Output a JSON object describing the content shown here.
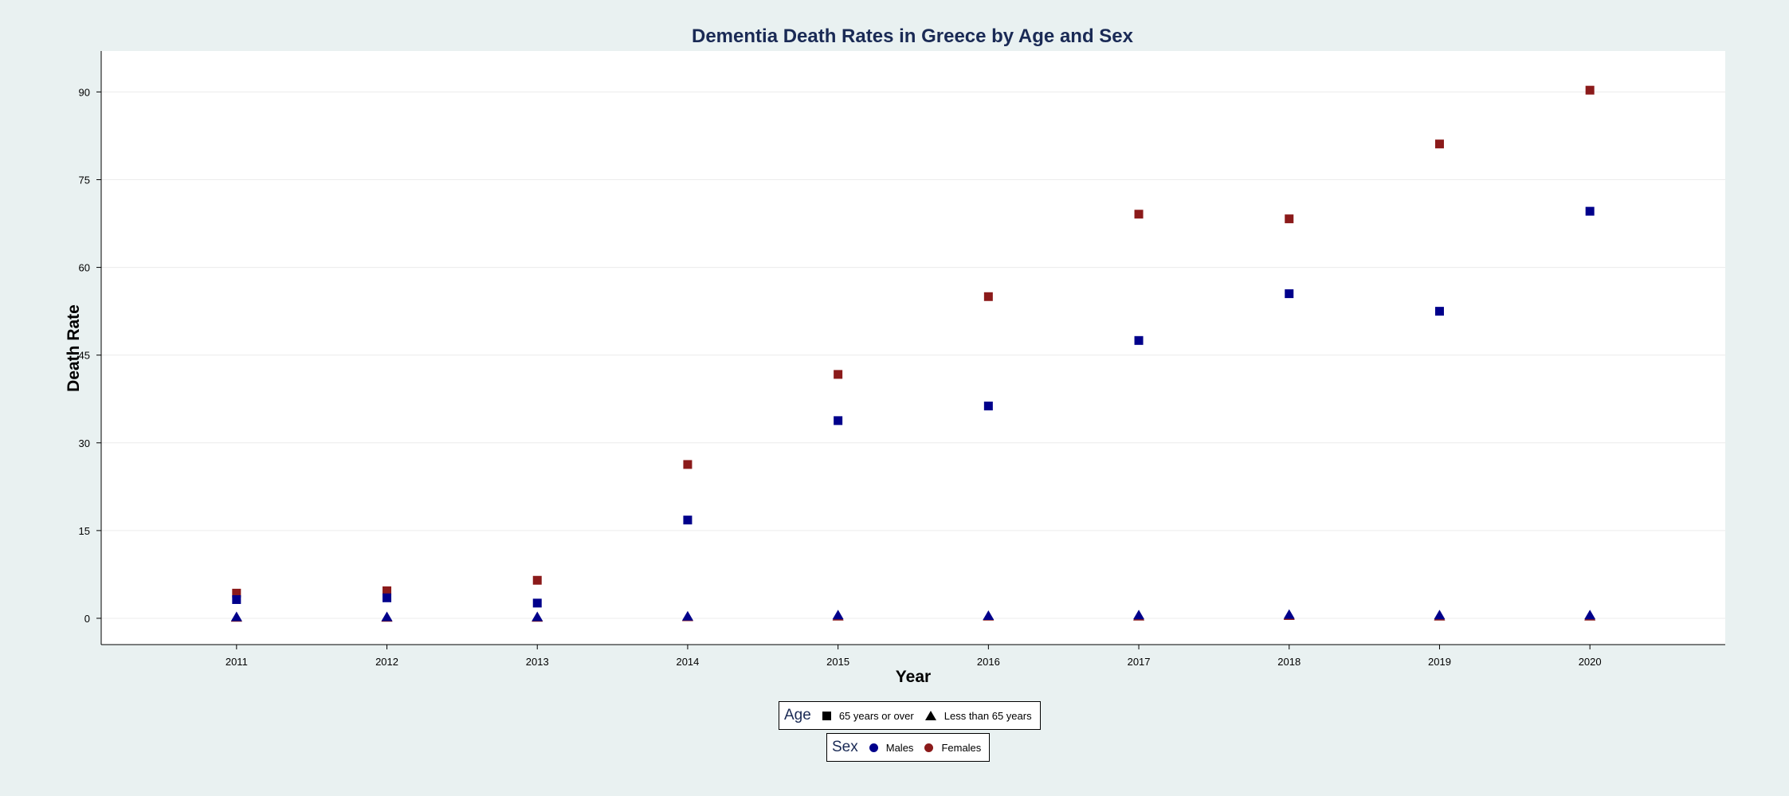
{
  "chart_data": {
    "type": "scatter",
    "title": "Dementia Death Rates in Greece by Age and Sex",
    "xlabel": "Year",
    "ylabel": "Death Rate",
    "x": [
      2011,
      2012,
      2013,
      2014,
      2015,
      2016,
      2017,
      2018,
      2019,
      2020
    ],
    "x_tick_labels": [
      "2011",
      "2012",
      "2013",
      "2014",
      "2015",
      "2016",
      "2017",
      "2018",
      "2019",
      "2020"
    ],
    "xlim": [
      2010.1,
      2020.9
    ],
    "y_ticks": [
      0,
      15,
      30,
      45,
      60,
      75,
      90
    ],
    "y_tick_labels": [
      "0",
      "15",
      "30",
      "45",
      "60",
      "75",
      "90"
    ],
    "ylim": [
      -4.5,
      97
    ],
    "grid": true,
    "series": [
      {
        "name": "Males, 65 years or over",
        "sex": "Males",
        "age": "65 years or over",
        "marker": "square",
        "color": "#00008b",
        "values": [
          3.2,
          3.5,
          2.6,
          16.8,
          33.8,
          36.3,
          47.5,
          55.5,
          52.5,
          69.6
        ]
      },
      {
        "name": "Females, 65 years or over",
        "sex": "Females",
        "age": "65 years or over",
        "marker": "square",
        "color": "#8b1a1a",
        "values": [
          4.3,
          4.7,
          6.5,
          26.3,
          41.7,
          55.0,
          69.1,
          68.3,
          81.1,
          90.3
        ]
      },
      {
        "name": "Males, Less than 65 years",
        "sex": "Males",
        "age": "Less than 65 years",
        "marker": "triangle",
        "color": "#00008b",
        "values": [
          0.2,
          0.2,
          0.2,
          0.3,
          0.5,
          0.4,
          0.5,
          0.6,
          0.5,
          0.5
        ]
      },
      {
        "name": "Females, Less than 65 years",
        "sex": "Females",
        "age": "Less than 65 years",
        "marker": "triangle",
        "color": "#8b1a1a",
        "values": [
          0.1,
          0.1,
          0.1,
          0.2,
          0.3,
          0.3,
          0.3,
          0.4,
          0.3,
          0.3
        ]
      }
    ]
  },
  "legend": {
    "age": {
      "title": "Age",
      "items": [
        {
          "label": "65 years or over",
          "marker": "square"
        },
        {
          "label": "Less than 65 years",
          "marker": "triangle"
        }
      ]
    },
    "sex": {
      "title": "Sex",
      "items": [
        {
          "label": "Males",
          "color": "#00008b"
        },
        {
          "label": "Females",
          "color": "#8b1a1a"
        }
      ]
    }
  },
  "colors": {
    "background": "#e9f1f1",
    "plot_background": "#ffffff",
    "title": "#1a2a55",
    "grid": "#ececec"
  }
}
